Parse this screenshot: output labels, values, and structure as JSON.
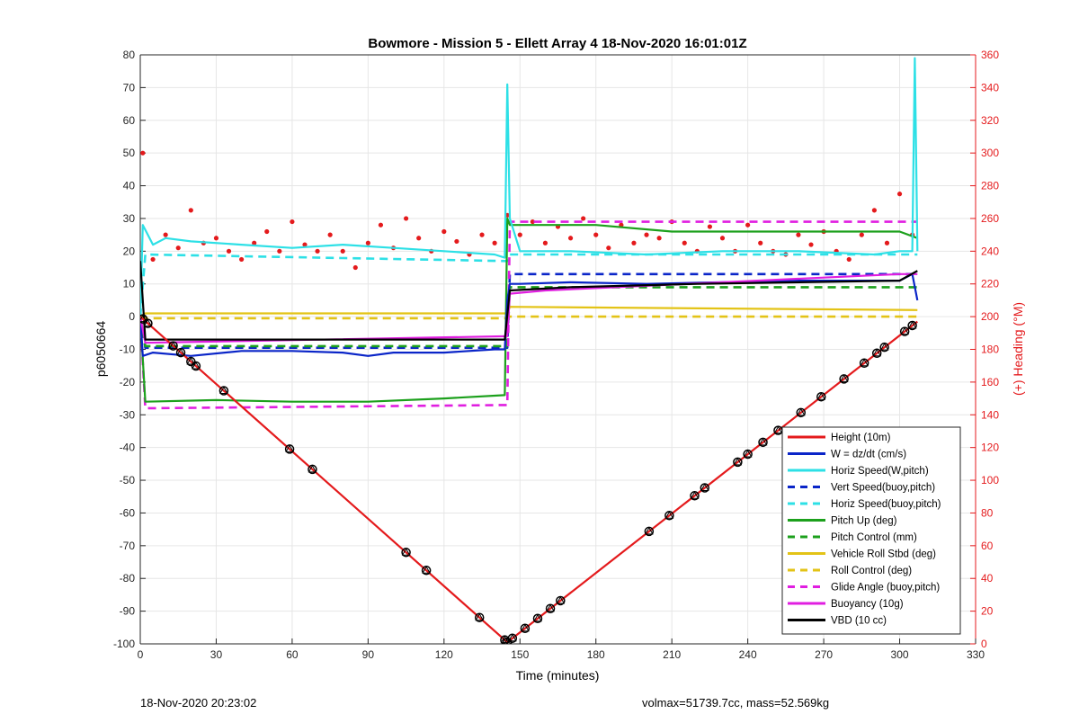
{
  "colors": {
    "right_axis": "#e41a1c",
    "height": "#e41a1c",
    "w": "#0a25c8",
    "horiz": "#2de0e6",
    "pitch": "#1ca01c",
    "roll": "#e3c316",
    "glide": "#e01ee0",
    "vbd": "#000000",
    "heading_points": "#e41a1c"
  },
  "footer": {
    "left": "18-Nov-2020 20:23:02",
    "right": "volmax=51739.7cc, mass=52.569kg"
  },
  "chart_data": {
    "type": "line",
    "title": "Bowmore - Mission 5 - Ellett Array 4 18-Nov-2020 16:01:01Z",
    "xlabel": "Time (minutes)",
    "ylabel": "p6050664",
    "ylabel_right": "(+) Heading (°M)",
    "xlim": [
      0,
      330
    ],
    "ylim": [
      -100,
      80
    ],
    "ylim_right": [
      0,
      360
    ],
    "xticks": [
      0,
      30,
      60,
      90,
      120,
      150,
      180,
      210,
      240,
      270,
      300,
      330
    ],
    "yticks": [
      80,
      70,
      60,
      50,
      40,
      30,
      20,
      10,
      0,
      -10,
      -20,
      -30,
      -40,
      -50,
      -60,
      -70,
      -80,
      -90,
      -100
    ],
    "yticks_right": [
      360,
      340,
      320,
      300,
      280,
      260,
      240,
      220,
      200,
      180,
      160,
      140,
      120,
      100,
      80,
      60,
      40,
      20,
      0
    ],
    "grid": true,
    "legend_position": "bottom-right",
    "series": [
      {
        "name": "Height (10m)",
        "color_key": "height",
        "style": "solid",
        "x": [
          0,
          145,
          307
        ],
        "y": [
          0,
          -99.5,
          -1.5
        ]
      },
      {
        "name": "W = dz/dt (cm/s)",
        "color_key": "w",
        "style": "solid",
        "x": [
          0,
          1,
          5,
          20,
          40,
          60,
          80,
          90,
          100,
          120,
          140,
          144,
          145,
          146,
          150,
          170,
          200,
          230,
          260,
          290,
          300,
          305,
          307
        ],
        "y": [
          0,
          -12,
          -11,
          -12,
          -10.5,
          -10.5,
          -11,
          -12,
          -11,
          -11,
          -10,
          -10,
          5,
          10,
          10,
          10.5,
          10,
          10.5,
          11,
          11,
          11,
          13,
          5
        ]
      },
      {
        "name": "Horiz Speed(W,pitch)",
        "color_key": "horiz",
        "style": "solid",
        "x": [
          0,
          1,
          5,
          10,
          20,
          40,
          60,
          80,
          100,
          120,
          140,
          144,
          145,
          146,
          150,
          170,
          200,
          230,
          260,
          290,
          300,
          305,
          306,
          307
        ],
        "y": [
          0,
          28,
          22,
          24,
          23,
          22,
          21,
          22,
          21,
          20,
          19,
          18,
          71,
          30,
          20,
          20,
          19,
          20,
          20,
          19,
          20,
          20,
          79,
          20
        ]
      },
      {
        "name": "Vert Speed(buoy,pitch)",
        "color_key": "w",
        "style": "dashed",
        "x": [
          0,
          2,
          145,
          146,
          307
        ],
        "y": [
          0,
          -9.5,
          -9.5,
          13,
          13
        ]
      },
      {
        "name": "Horiz Speed(buoy,pitch)",
        "color_key": "horiz",
        "style": "dashed",
        "x": [
          0,
          2,
          145,
          146,
          307
        ],
        "y": [
          0,
          19,
          17,
          19,
          19
        ]
      },
      {
        "name": "Pitch Up (deg)",
        "color_key": "pitch",
        "style": "solid",
        "x": [
          0,
          2,
          30,
          60,
          90,
          120,
          144,
          145,
          146,
          150,
          180,
          210,
          240,
          270,
          300,
          307
        ],
        "y": [
          0,
          -26,
          -25.5,
          -26,
          -26,
          -25,
          -24,
          30,
          28,
          28,
          28,
          26,
          26,
          26,
          26,
          24
        ]
      },
      {
        "name": "Pitch Control (mm)",
        "color_key": "pitch",
        "style": "dashed",
        "x": [
          0,
          2,
          145,
          146,
          307
        ],
        "y": [
          0,
          -9,
          -9,
          9,
          9
        ]
      },
      {
        "name": "Vehicle Roll Stbd (deg)",
        "color_key": "roll",
        "style": "solid",
        "x": [
          0,
          2,
          145,
          146,
          307
        ],
        "y": [
          0,
          1,
          1,
          3,
          2
        ]
      },
      {
        "name": "Roll Control (deg)",
        "color_key": "roll",
        "style": "dashed",
        "x": [
          0,
          2,
          145,
          146,
          307
        ],
        "y": [
          0,
          -0.5,
          -0.5,
          0,
          0
        ]
      },
      {
        "name": "Glide Angle (buoy,pitch)",
        "color_key": "glide",
        "style": "dashed",
        "x": [
          0,
          2,
          145,
          146,
          307
        ],
        "y": [
          0,
          -28,
          -27,
          29,
          29
        ]
      },
      {
        "name": "Buoyancy (10g)",
        "color_key": "glide",
        "style": "solid",
        "x": [
          0,
          2,
          145,
          146,
          160,
          300,
          307
        ],
        "y": [
          0,
          -8,
          -6,
          7,
          8,
          13,
          13
        ]
      },
      {
        "name": "VBD (10 cc)",
        "color_key": "vbd",
        "style": "solid",
        "x": [
          0,
          2,
          144,
          146,
          170,
          220,
          300,
          307
        ],
        "y": [
          17,
          -7,
          -7,
          8,
          9,
          10,
          11,
          14
        ]
      }
    ],
    "heading_points_right_axis": {
      "name": "(+) Heading (°M)",
      "x": [
        1,
        5,
        10,
        15,
        20,
        25,
        30,
        35,
        40,
        45,
        50,
        55,
        60,
        65,
        70,
        75,
        80,
        85,
        90,
        95,
        100,
        105,
        110,
        115,
        120,
        125,
        130,
        135,
        140,
        145,
        150,
        155,
        160,
        165,
        170,
        175,
        180,
        185,
        190,
        195,
        200,
        205,
        210,
        215,
        220,
        225,
        230,
        235,
        240,
        245,
        250,
        255,
        260,
        265,
        270,
        275,
        280,
        285,
        290,
        295,
        300,
        305
      ],
      "y": [
        300,
        235,
        250,
        242,
        265,
        245,
        248,
        240,
        235,
        245,
        252,
        240,
        258,
        244,
        240,
        250,
        240,
        230,
        245,
        256,
        242,
        260,
        248,
        240,
        252,
        246,
        238,
        250,
        245,
        262,
        250,
        258,
        245,
        255,
        248,
        260,
        250,
        242,
        256,
        245,
        250,
        248,
        258,
        245,
        240,
        255,
        248,
        240,
        256,
        245,
        240,
        238,
        250,
        244,
        252,
        240,
        235,
        250,
        265,
        245,
        275,
        250
      ]
    },
    "markers_on_height": {
      "x": [
        1,
        3,
        13,
        16,
        20,
        22,
        33,
        59,
        68,
        105,
        113,
        134,
        144,
        145,
        147,
        152,
        157,
        162,
        166,
        201,
        209,
        219,
        223,
        236,
        240,
        246,
        252,
        261,
        269,
        278,
        286,
        291,
        294,
        302,
        305
      ]
    }
  }
}
